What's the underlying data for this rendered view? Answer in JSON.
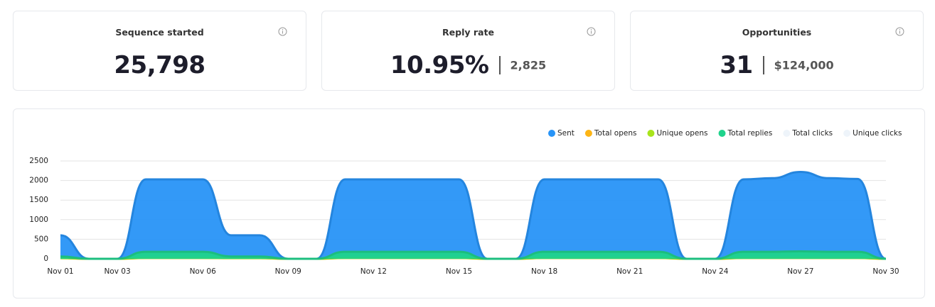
{
  "cards": [
    {
      "title": "Sequence started",
      "value": "25,798"
    },
    {
      "title": "Reply rate",
      "value": "10.95%",
      "secondary": "2,825"
    },
    {
      "title": "Opportunities",
      "value": "31",
      "secondary": "$124,000"
    }
  ],
  "chart_data": {
    "type": "area",
    "categories": [
      "Nov 01",
      null,
      "Nov 03",
      null,
      null,
      "Nov 06",
      null,
      null,
      "Nov 09",
      null,
      null,
      "Nov 12",
      null,
      null,
      "Nov 15",
      null,
      null,
      "Nov 18",
      null,
      null,
      "Nov 21",
      null,
      null,
      "Nov 24",
      null,
      null,
      "Nov 27",
      null,
      null,
      "Nov 30"
    ],
    "series": [
      {
        "name": "Sent",
        "color": "#2894f7",
        "values": [
          600,
          0,
          0,
          2030,
          2030,
          2030,
          600,
          600,
          0,
          0,
          2030,
          2030,
          2030,
          2030,
          2030,
          0,
          0,
          2030,
          2030,
          2030,
          2030,
          2030,
          0,
          0,
          2030,
          2060,
          2220,
          2060,
          2040,
          0
        ]
      },
      {
        "name": "Total opens",
        "color": "#fdb515",
        "values": [
          20,
          0,
          0,
          25,
          25,
          25,
          20,
          20,
          0,
          0,
          25,
          25,
          25,
          25,
          25,
          0,
          0,
          25,
          25,
          25,
          25,
          25,
          0,
          0,
          25,
          25,
          25,
          25,
          25,
          0
        ]
      },
      {
        "name": "Unique opens",
        "color": "#a8e41c",
        "values": [
          15,
          0,
          0,
          20,
          20,
          20,
          15,
          15,
          0,
          0,
          20,
          20,
          20,
          20,
          20,
          0,
          0,
          20,
          20,
          20,
          20,
          20,
          0,
          0,
          20,
          20,
          20,
          20,
          20,
          0
        ]
      },
      {
        "name": "Total replies",
        "color": "#1fd38c",
        "values": [
          60,
          0,
          0,
          180,
          180,
          180,
          60,
          60,
          0,
          0,
          180,
          180,
          180,
          180,
          180,
          0,
          0,
          180,
          180,
          180,
          180,
          180,
          0,
          0,
          180,
          180,
          190,
          180,
          180,
          0
        ]
      },
      {
        "name": "Total clicks",
        "color": "#eef4fa",
        "hidden": true
      },
      {
        "name": "Unique clicks",
        "color": "#eef4fa",
        "hidden": true
      }
    ],
    "ylim": [
      0,
      2500
    ],
    "yticks": [
      0,
      500,
      1000,
      1500,
      2000,
      2500
    ],
    "grid": true
  }
}
